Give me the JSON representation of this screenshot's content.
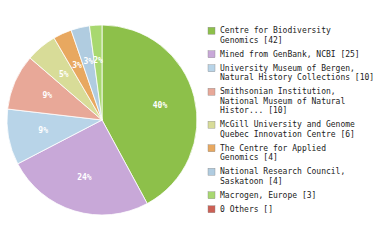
{
  "chart_data": {
    "type": "pie",
    "categories": [
      "Centre for Biodiversity\nGenomics [42]",
      "Mined from GenBank, NCBI [25]",
      "University Museum of Bergen,\nNatural History Collections [10]",
      "Smithsonian Institution,\nNational Museum of Natural\nHistor... [10]",
      "McGill University and Genome\nQuebec Innovation Centre [6]",
      "The Centre for Applied\nGenomics [4]",
      "National Research Council,\nSaskatoon [4]",
      "Macrogen, Europe [3]",
      "0 Others []"
    ],
    "values": [
      40,
      24,
      9,
      9,
      5,
      3,
      3,
      2,
      0
    ],
    "value_labels": [
      "40%",
      "24%",
      "9%",
      "9%",
      "5%",
      "3%",
      "3%",
      "2%",
      null
    ],
    "colors": [
      "#8dc04a",
      "#c8a8d8",
      "#b8d4e8",
      "#e8a898",
      "#d8dc98",
      "#e8a860",
      "#b0cce0",
      "#a8d870",
      "#cc6055"
    ],
    "data_labels": true
  }
}
